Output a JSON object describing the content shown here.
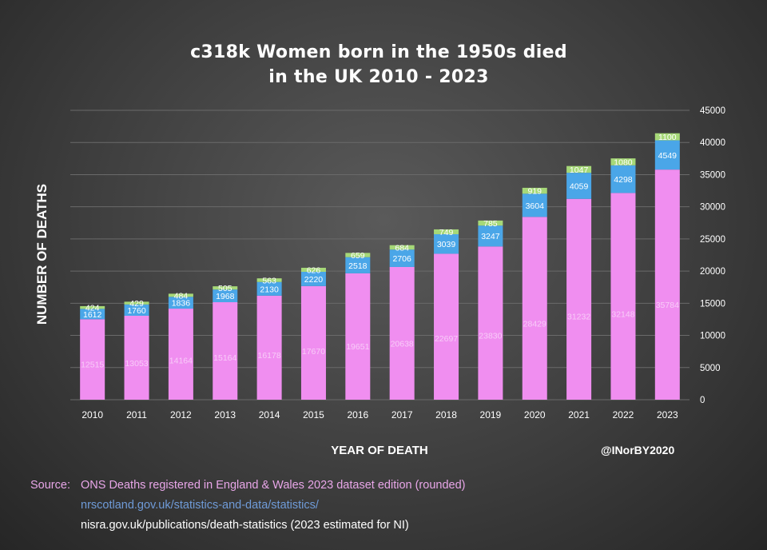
{
  "colors": {
    "england_wales": "#f08ef0",
    "scotland": "#4aa6e8",
    "ni": "#a6d878",
    "gridline": "#6a6a6a",
    "text": "#ffffff"
  },
  "chart_data": {
    "type": "bar",
    "stacked": true,
    "title_line1": "c318k Women born in the 1950s died",
    "title_line2": "in the UK 2010 - 2023",
    "xlabel": "YEAR OF DEATH",
    "ylabel": "NUMBER OF DEATHS",
    "categories": [
      "2010",
      "2011",
      "2012",
      "2013",
      "2014",
      "2015",
      "2016",
      "2017",
      "2018",
      "2019",
      "2020",
      "2021",
      "2022",
      "2023"
    ],
    "series": [
      {
        "values": [
          12515,
          13053,
          14164,
          15164,
          16178,
          17670,
          19651,
          20638,
          22697,
          23830,
          28429,
          31232,
          32148,
          35784
        ]
      },
      {
        "values": [
          1612,
          1760,
          1836,
          1968,
          2130,
          2220,
          2518,
          2706,
          3039,
          3247,
          3604,
          4059,
          4298,
          4549
        ]
      },
      {
        "values": [
          424,
          429,
          484,
          505,
          563,
          626,
          659,
          684,
          749,
          785,
          919,
          1047,
          1080,
          1100
        ]
      }
    ],
    "ylim": [
      0,
      45000
    ],
    "yticks": [
      0,
      5000,
      10000,
      15000,
      20000,
      25000,
      30000,
      35000,
      40000,
      45000
    ],
    "y_axis_side": "right",
    "grid": true,
    "legend": "none"
  },
  "credit": "@INorBY2020",
  "sources": {
    "label": "Source:",
    "line1": "ONS Deaths registered  in England & Wales 2023 dataset edition (rounded)",
    "line2": "nrscotland.gov.uk/statistics-and-data/statistics/",
    "line3": "nisra.gov.uk/publications/death-statistics (2023 estimated for NI)"
  }
}
